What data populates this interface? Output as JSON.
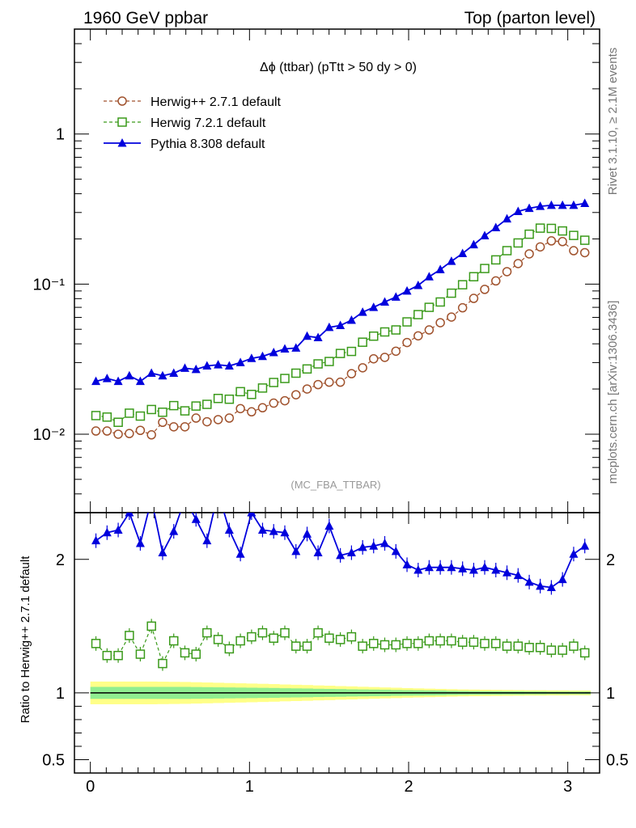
{
  "header": {
    "left": "1960 GeV ppbar",
    "right": "Top (parton level)"
  },
  "side_labels": {
    "rivet": "Rivet 3.1.10, ≥ 2.1M events",
    "mcplots": "mcplots.cern.ch [arXiv:1306.3436]"
  },
  "colors": {
    "herwigpp": "#a0522d",
    "herwig7": "#3a9a1a",
    "pythia": "#0000dd",
    "band_inner": "#90ee90",
    "band_outer": "#ffff88"
  },
  "chart_data": [
    {
      "type": "line",
      "title": "Δϕ (ttbar) (pTtt > 50 dy > 0)",
      "watermark": "(MC_FBA_TTBAR)",
      "yscale": "log",
      "ylim": [
        0.003,
        5
      ],
      "xlim": [
        -0.1,
        3.2
      ],
      "y_ticks": [
        "10⁻²",
        "10⁻¹",
        "1"
      ],
      "x": [
        0.035,
        0.105,
        0.175,
        0.245,
        0.314,
        0.384,
        0.454,
        0.524,
        0.594,
        0.664,
        0.733,
        0.803,
        0.873,
        0.943,
        1.013,
        1.082,
        1.152,
        1.222,
        1.292,
        1.362,
        1.431,
        1.501,
        1.571,
        1.641,
        1.711,
        1.78,
        1.85,
        1.92,
        1.99,
        2.06,
        2.129,
        2.199,
        2.269,
        2.339,
        2.409,
        2.478,
        2.548,
        2.618,
        2.688,
        2.758,
        2.827,
        2.897,
        2.967,
        3.037,
        3.107
      ],
      "series": [
        {
          "name": "Herwig++ 2.7.1 default",
          "marker": "open-circle",
          "line": "dashed",
          "color_key": "herwigpp",
          "values": [
            0.0105,
            0.0105,
            0.01,
            0.0101,
            0.0106,
            0.0099,
            0.012,
            0.0112,
            0.0112,
            0.0128,
            0.0121,
            0.0125,
            0.0128,
            0.0148,
            0.0141,
            0.015,
            0.0161,
            0.0167,
            0.0183,
            0.02,
            0.0214,
            0.0222,
            0.0222,
            0.0253,
            0.0277,
            0.0318,
            0.0325,
            0.0357,
            0.0408,
            0.0452,
            0.0495,
            0.0553,
            0.0603,
            0.0695,
            0.0803,
            0.0922,
            0.105,
            0.121,
            0.137,
            0.159,
            0.177,
            0.194,
            0.192,
            0.167,
            0.162
          ]
        },
        {
          "name": "Herwig 7.2.1 default",
          "marker": "open-square",
          "line": "dashed",
          "color_key": "herwig7",
          "values": [
            0.0133,
            0.013,
            0.012,
            0.0138,
            0.0132,
            0.0146,
            0.014,
            0.0155,
            0.0143,
            0.0154,
            0.0158,
            0.0173,
            0.0171,
            0.0192,
            0.0184,
            0.0203,
            0.0221,
            0.0235,
            0.0255,
            0.0272,
            0.0294,
            0.0305,
            0.0345,
            0.0356,
            0.041,
            0.045,
            0.048,
            0.0495,
            0.056,
            0.0626,
            0.07,
            0.076,
            0.087,
            0.099,
            0.112,
            0.127,
            0.145,
            0.167,
            0.188,
            0.215,
            0.236,
            0.235,
            0.226,
            0.211,
            0.196
          ]
        },
        {
          "name": "Pythia 8.308 default",
          "marker": "filled-triangle",
          "line": "solid",
          "color_key": "pythia",
          "values": [
            0.0225,
            0.0235,
            0.0225,
            0.0245,
            0.0225,
            0.0255,
            0.0245,
            0.0255,
            0.0275,
            0.027,
            0.0285,
            0.029,
            0.0285,
            0.03,
            0.032,
            0.033,
            0.035,
            0.037,
            0.0375,
            0.045,
            0.044,
            0.0515,
            0.053,
            0.0575,
            0.065,
            0.07,
            0.076,
            0.082,
            0.09,
            0.098,
            0.112,
            0.125,
            0.142,
            0.16,
            0.183,
            0.21,
            0.238,
            0.272,
            0.305,
            0.32,
            0.33,
            0.335,
            0.335,
            0.335,
            0.345
          ]
        }
      ]
    },
    {
      "type": "line",
      "ylabel": "Ratio to Herwig++ 2.7.1 default",
      "ylim": [
        0.4,
        2.35
      ],
      "xlim": [
        -0.1,
        3.2
      ],
      "x_ticks": [
        "0",
        "1",
        "2",
        "3"
      ],
      "y_ticks": [
        "0.5",
        "1",
        "2"
      ],
      "reference_line": 1.0,
      "series": [
        {
          "name": "Herwig 7.2.1 default",
          "color_key": "herwig7",
          "values": [
            1.37,
            1.28,
            1.28,
            1.43,
            1.29,
            1.5,
            1.22,
            1.39,
            1.3,
            1.29,
            1.45,
            1.4,
            1.33,
            1.39,
            1.42,
            1.45,
            1.41,
            1.45,
            1.35,
            1.35,
            1.45,
            1.41,
            1.4,
            1.42,
            1.35,
            1.37,
            1.36,
            1.36,
            1.37,
            1.37,
            1.39,
            1.39,
            1.39,
            1.38,
            1.38,
            1.37,
            1.37,
            1.35,
            1.35,
            1.34,
            1.34,
            1.32,
            1.32,
            1.35,
            1.3
          ]
        },
        {
          "name": "Pythia 8.308 default",
          "color_key": "pythia",
          "values": [
            2.14,
            2.2,
            2.22,
            2.35,
            2.12,
            2.45,
            2.05,
            2.21,
            2.45,
            2.3,
            2.14,
            2.5,
            2.22,
            2.04,
            2.35,
            2.22,
            2.21,
            2.2,
            2.06,
            2.19,
            2.05,
            2.25,
            2.03,
            2.05,
            2.09,
            2.1,
            2.12,
            2.06,
            1.96,
            1.92,
            1.94,
            1.94,
            1.94,
            1.93,
            1.92,
            1.94,
            1.92,
            1.9,
            1.88,
            1.83,
            1.8,
            1.79,
            1.85,
            2.04,
            2.1
          ]
        }
      ],
      "band": {
        "inner_halfwidth": [
          0.045,
          0.045,
          0.045,
          0.045,
          0.045,
          0.045,
          0.045,
          0.045,
          0.045,
          0.044,
          0.043,
          0.042,
          0.041,
          0.04,
          0.039,
          0.038,
          0.037,
          0.035,
          0.034,
          0.033,
          0.031,
          0.03,
          0.029,
          0.027,
          0.026,
          0.025,
          0.024,
          0.022,
          0.021,
          0.02,
          0.019,
          0.018,
          0.016,
          0.015,
          0.014,
          0.013,
          0.013,
          0.012,
          0.012,
          0.011,
          0.011,
          0.01,
          0.01,
          0.01,
          0.01
        ],
        "outer_halfwidth": [
          0.085,
          0.085,
          0.085,
          0.085,
          0.085,
          0.085,
          0.084,
          0.083,
          0.082,
          0.08,
          0.078,
          0.076,
          0.074,
          0.072,
          0.07,
          0.068,
          0.066,
          0.063,
          0.061,
          0.059,
          0.056,
          0.054,
          0.051,
          0.049,
          0.046,
          0.044,
          0.041,
          0.039,
          0.036,
          0.034,
          0.032,
          0.03,
          0.028,
          0.026,
          0.025,
          0.024,
          0.023,
          0.022,
          0.021,
          0.02,
          0.02,
          0.019,
          0.019,
          0.018,
          0.018
        ]
      }
    }
  ]
}
